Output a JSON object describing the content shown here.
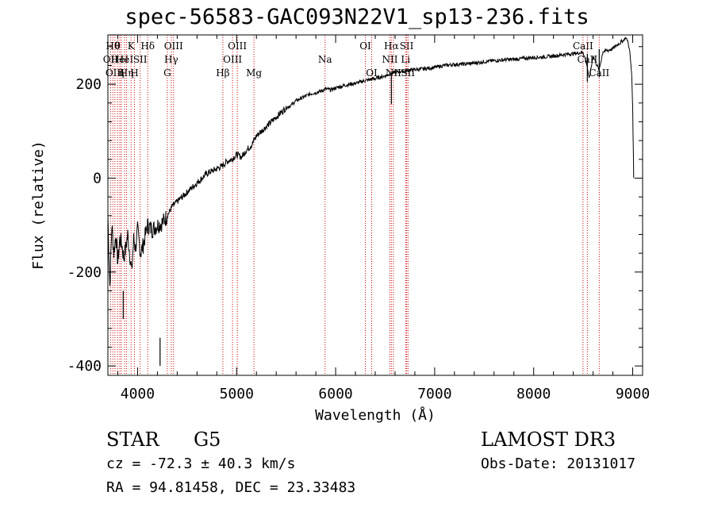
{
  "chart_data": {
    "type": "line",
    "title": "spec-56583-GAC093N22V1_sp13-236.fits",
    "xlabel": "Wavelength (Å)",
    "ylabel": "Flux (relative)",
    "xlim": [
      3700,
      9100
    ],
    "ylim": [
      -420,
      305
    ],
    "xticks": [
      4000,
      5000,
      6000,
      7000,
      8000,
      9000
    ],
    "yticks": [
      -400,
      -200,
      0,
      200
    ],
    "series": [
      {
        "name": "spectrum",
        "x": [
          3700,
          3720,
          3740,
          3760,
          3780,
          3800,
          3820,
          3840,
          3860,
          3880,
          3900,
          3920,
          3940,
          3960,
          3980,
          4000,
          4030,
          4060,
          4100,
          4150,
          4200,
          4250,
          4300,
          4350,
          4400,
          4450,
          4500,
          4550,
          4600,
          4650,
          4700,
          4750,
          4800,
          4850,
          4900,
          4950,
          5000,
          5050,
          5100,
          5150,
          5200,
          5250,
          5300,
          5350,
          5400,
          5450,
          5500,
          5550,
          5600,
          5650,
          5700,
          5750,
          5800,
          5850,
          5900,
          5950,
          6000,
          6050,
          6100,
          6150,
          6200,
          6250,
          6300,
          6350,
          6400,
          6450,
          6500,
          6550,
          6600,
          6650,
          6700,
          6750,
          6800,
          6900,
          7000,
          7100,
          7200,
          7300,
          7400,
          7500,
          7600,
          7700,
          7800,
          7900,
          8000,
          8100,
          8200,
          8300,
          8400,
          8500,
          8540,
          8560,
          8600,
          8660,
          8700,
          8750,
          8800,
          8850,
          8900,
          8930,
          8950,
          8970,
          8990,
          9000,
          9010
        ],
        "y": [
          -80,
          -230,
          -100,
          -160,
          -120,
          -180,
          -130,
          -140,
          -170,
          -150,
          -120,
          -160,
          -200,
          -130,
          -150,
          -110,
          -160,
          -140,
          -100,
          -110,
          -100,
          -95,
          -80,
          -60,
          -50,
          -40,
          -30,
          -20,
          -10,
          0,
          10,
          15,
          20,
          25,
          35,
          40,
          50,
          45,
          60,
          70,
          90,
          100,
          110,
          120,
          130,
          140,
          150,
          155,
          165,
          170,
          175,
          180,
          182,
          185,
          190,
          188,
          192,
          195,
          198,
          200,
          202,
          205,
          208,
          210,
          212,
          215,
          218,
          222,
          225,
          227,
          228,
          230,
          231,
          233,
          236,
          240,
          242,
          243,
          245,
          248,
          250,
          252,
          253,
          255,
          257,
          258,
          260,
          263,
          265,
          268,
          240,
          210,
          260,
          230,
          270,
          272,
          276,
          285,
          292,
          299,
          292,
          270,
          220,
          150,
          0
        ],
        "spikes": [
          {
            "x": 3855,
            "y": -300
          },
          {
            "x": 4227,
            "y": -400
          },
          {
            "x": 6563,
            "y": 158
          },
          {
            "x": 8542,
            "y": 205
          },
          {
            "x": 8662,
            "y": 215
          }
        ]
      }
    ],
    "lines": [
      {
        "x": 3727,
        "row": 1,
        "label": "OII"
      },
      {
        "x": 3750,
        "row": 0,
        "label": "Hθ"
      },
      {
        "x": 3771,
        "row": 2,
        "label": "OIII"
      },
      {
        "x": 3798,
        "row": 0,
        "label": "θ"
      },
      {
        "x": 3820,
        "row": 1,
        "label": "HeI"
      },
      {
        "x": 3835,
        "row": 2,
        "label": "η"
      },
      {
        "x": 3869,
        "row": 1,
        "label": "HeI"
      },
      {
        "x": 3889,
        "row": 2,
        "label": "Hη"
      },
      {
        "x": 3934,
        "row": 0,
        "label": "K"
      },
      {
        "x": 3968,
        "row": 2,
        "label": "H"
      },
      {
        "x": 4026,
        "row": 1,
        "label": "SII"
      },
      {
        "x": 4102,
        "row": 0,
        "label": "Hδ"
      },
      {
        "x": 4300,
        "row": 2,
        "label": "G"
      },
      {
        "x": 4340,
        "row": 1,
        "label": "Hγ"
      },
      {
        "x": 4363,
        "row": 0,
        "label": "OIII"
      },
      {
        "x": 4861,
        "row": 2,
        "label": "Hβ"
      },
      {
        "x": 4959,
        "row": 1,
        "label": "OIII"
      },
      {
        "x": 5007,
        "row": 0,
        "label": "OIII"
      },
      {
        "x": 5175,
        "row": 2,
        "label": "Mg"
      },
      {
        "x": 5893,
        "row": 1,
        "label": "Na"
      },
      {
        "x": 6300,
        "row": 0,
        "label": "OI"
      },
      {
        "x": 6364,
        "row": 2,
        "label": "OI"
      },
      {
        "x": 6548,
        "row": 1,
        "label": "NII"
      },
      {
        "x": 6563,
        "row": 0,
        "label": "Hα"
      },
      {
        "x": 6583,
        "row": 2,
        "label": "NII"
      },
      {
        "x": 6707,
        "row": 1,
        "label": "Li"
      },
      {
        "x": 6717,
        "row": 0,
        "label": "SII"
      },
      {
        "x": 6731,
        "row": 2,
        "label": "SII"
      },
      {
        "x": 8498,
        "row": 0,
        "label": "CaII"
      },
      {
        "x": 8542,
        "row": 1,
        "label": "CaII"
      },
      {
        "x": 8662,
        "row": 2,
        "label": "CaII"
      }
    ]
  },
  "info": {
    "object_class": "STAR",
    "subclass": "G5",
    "survey": "LAMOST DR3",
    "cz": "cz = -72.3 ± 40.3 km/s",
    "obs_date": "Obs-Date: 20131017",
    "coords": "RA =  94.81458, DEC =  23.33483"
  }
}
